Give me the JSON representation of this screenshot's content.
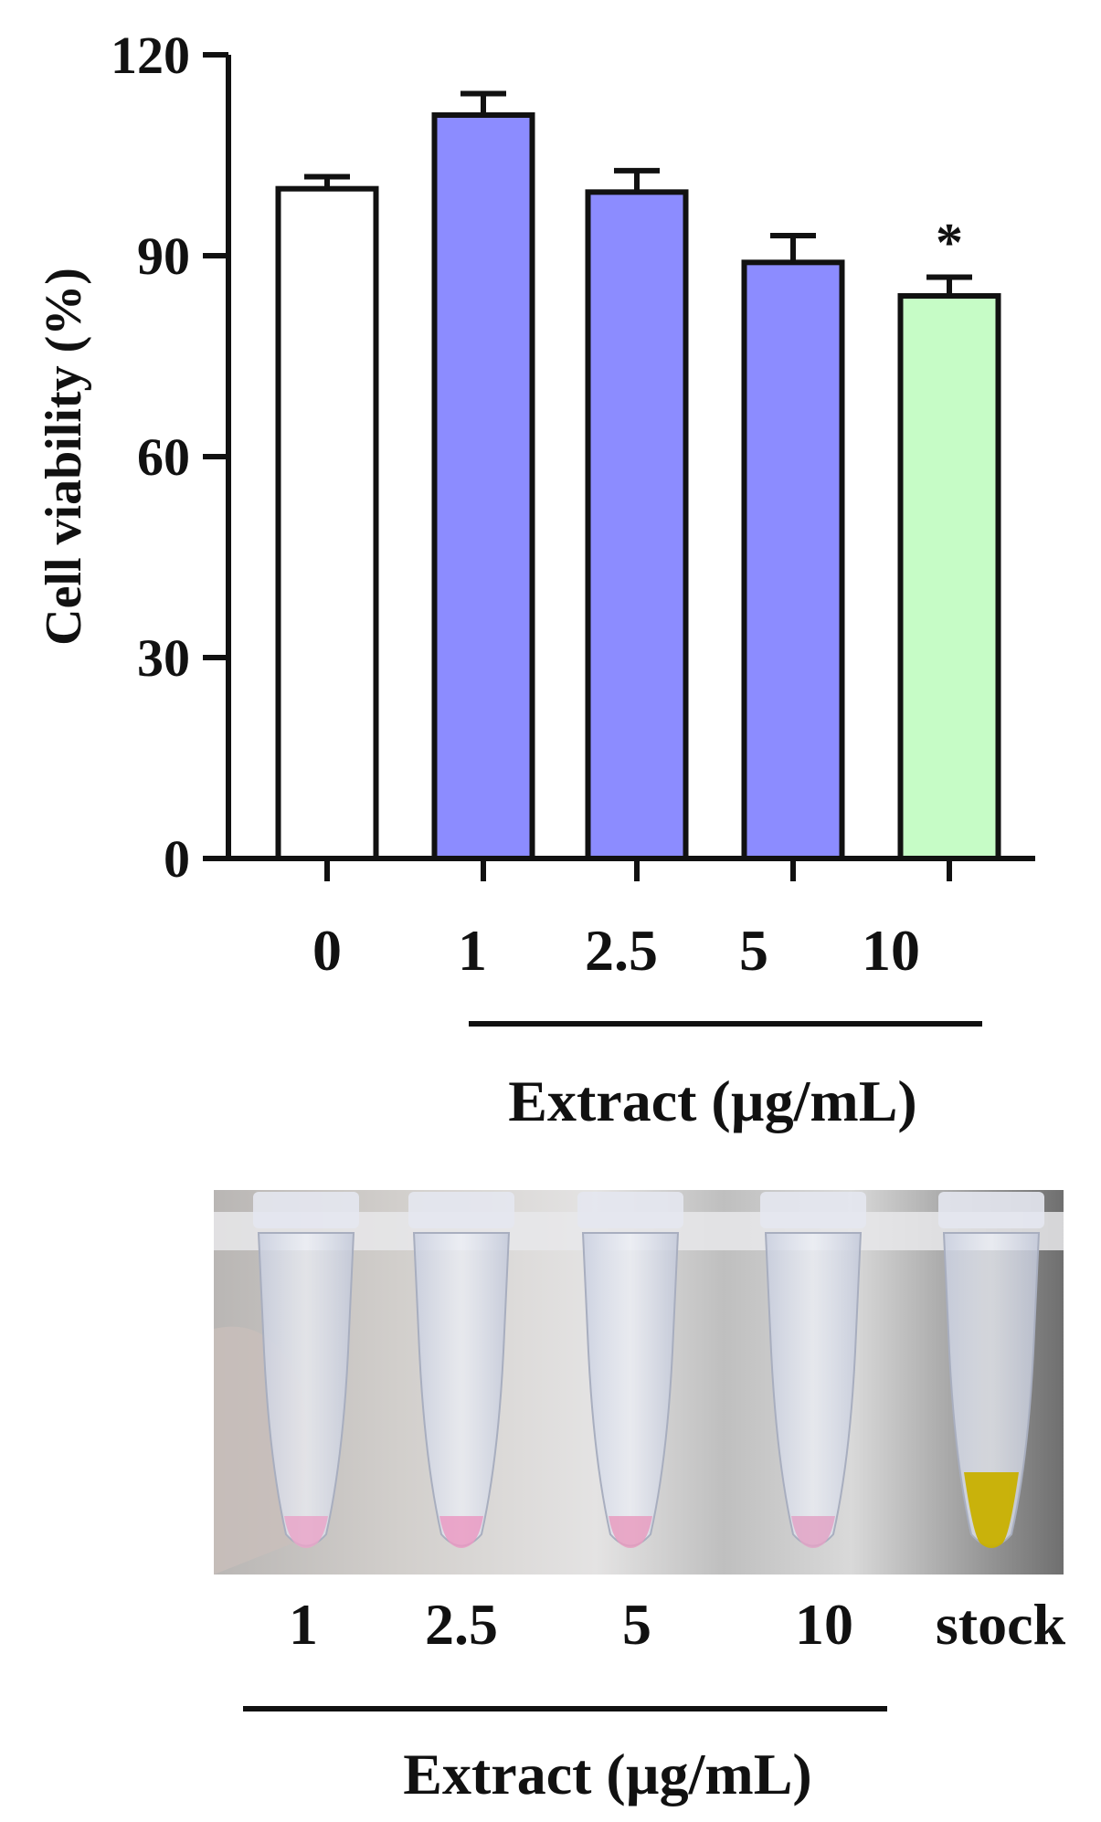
{
  "chart_data": {
    "type": "bar",
    "ylabel": "Cell viability (%)",
    "xlabel": "Extract (µg/mL)",
    "categories": [
      "0",
      "1",
      "2.5",
      "5",
      "10"
    ],
    "values": [
      100,
      111,
      99.5,
      89,
      84
    ],
    "errors": [
      1.8,
      3.2,
      3.2,
      4.0,
      2.8
    ],
    "significance": [
      "",
      "",
      "",
      "",
      "*"
    ],
    "bar_colors": [
      "#ffffff",
      "#8c8cff",
      "#8c8cff",
      "#8c8cff",
      "#c6fcc6"
    ],
    "ylim": [
      0,
      120
    ],
    "yticks": [
      "0",
      "30",
      "60",
      "90",
      "120"
    ],
    "grid": false,
    "legend": "none"
  },
  "photo": {
    "tube_labels": [
      "1",
      "2.5",
      "5",
      "10",
      "stock"
    ],
    "xlabel": "Extract (µg/mL)",
    "liquid_colors": [
      "#e9a6c9",
      "#ea9ac3",
      "#e79cc0",
      "#e2a3c6",
      "#c8b000"
    ]
  }
}
